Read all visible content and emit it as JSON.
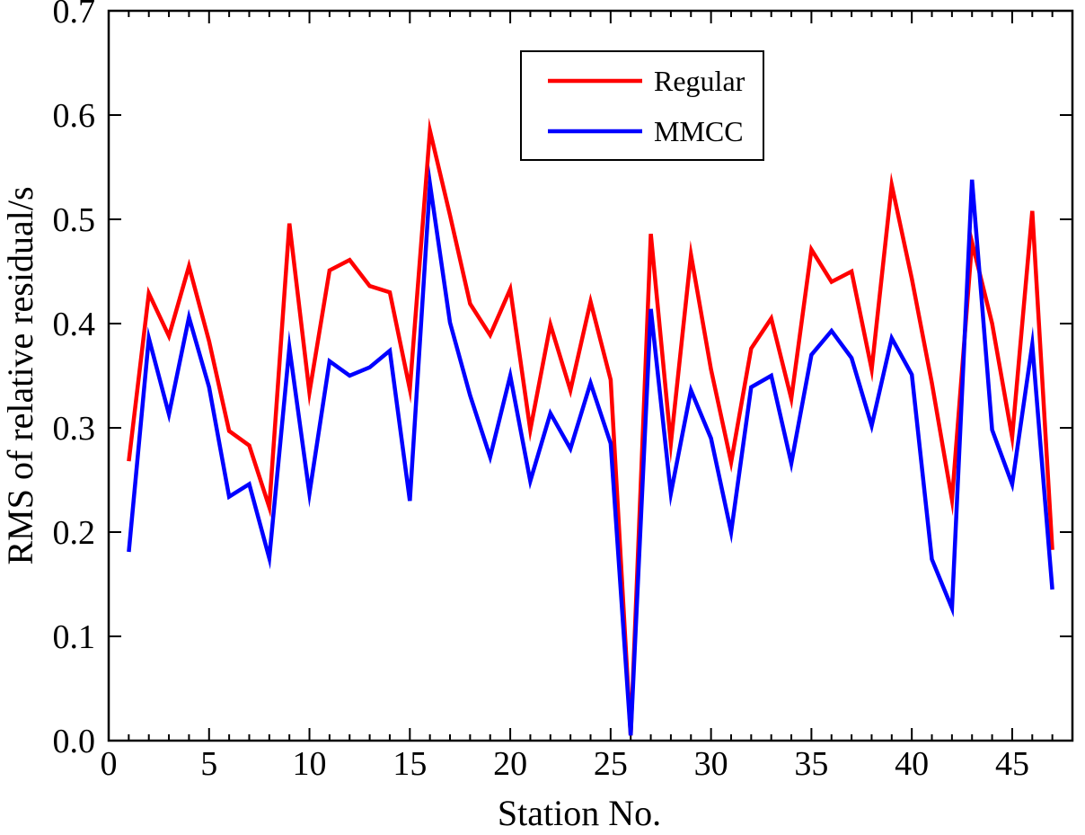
{
  "chart_data": {
    "type": "line",
    "title": "",
    "xlabel": "Station No.",
    "ylabel": "RMS of relative residual/s",
    "xlim": [
      0,
      48
    ],
    "ylim": [
      0.0,
      0.7
    ],
    "x_major_ticks": [
      0,
      5,
      10,
      15,
      20,
      25,
      30,
      35,
      40,
      45
    ],
    "x_tick_labels": [
      "0",
      "5",
      "10",
      "15",
      "20",
      "25",
      "30",
      "35",
      "40",
      "45"
    ],
    "y_major_ticks": [
      0.0,
      0.1,
      0.2,
      0.3,
      0.4,
      0.5,
      0.6,
      0.7
    ],
    "y_tick_labels": [
      "0.0",
      "0.1",
      "0.2",
      "0.3",
      "0.4",
      "0.5",
      "0.6",
      "0.7"
    ],
    "grid": false,
    "legend_position": "top-center",
    "x": [
      1,
      2,
      3,
      4,
      5,
      6,
      7,
      8,
      9,
      10,
      11,
      12,
      13,
      14,
      15,
      16,
      17,
      18,
      19,
      20,
      21,
      22,
      23,
      24,
      25,
      26,
      27,
      28,
      29,
      30,
      31,
      32,
      33,
      34,
      35,
      36,
      37,
      38,
      39,
      40,
      41,
      42,
      43,
      44,
      45,
      46,
      47
    ],
    "series": [
      {
        "name": "Regular",
        "color": "#ff0000",
        "values": [
          0.268,
          0.429,
          0.388,
          0.455,
          0.383,
          0.297,
          0.283,
          0.224,
          0.496,
          0.334,
          0.451,
          0.461,
          0.436,
          0.43,
          0.337,
          0.585,
          0.504,
          0.419,
          0.389,
          0.433,
          0.298,
          0.399,
          0.336,
          0.421,
          0.346,
          0.005,
          0.486,
          0.285,
          0.466,
          0.356,
          0.267,
          0.376,
          0.405,
          0.328,
          0.471,
          0.44,
          0.45,
          0.356,
          0.533,
          0.443,
          0.343,
          0.231,
          0.478,
          0.4,
          0.291,
          0.508,
          0.183
        ]
      },
      {
        "name": "MMCC",
        "color": "#0000ff",
        "values": [
          0.181,
          0.386,
          0.313,
          0.406,
          0.339,
          0.234,
          0.246,
          0.175,
          0.377,
          0.237,
          0.364,
          0.35,
          0.358,
          0.374,
          0.23,
          0.534,
          0.401,
          0.331,
          0.272,
          0.35,
          0.249,
          0.314,
          0.28,
          0.343,
          0.285,
          0.005,
          0.414,
          0.237,
          0.336,
          0.29,
          0.2,
          0.339,
          0.35,
          0.266,
          0.37,
          0.393,
          0.367,
          0.302,
          0.386,
          0.351,
          0.174,
          0.127,
          0.538,
          0.298,
          0.246,
          0.38,
          0.145
        ]
      }
    ]
  }
}
